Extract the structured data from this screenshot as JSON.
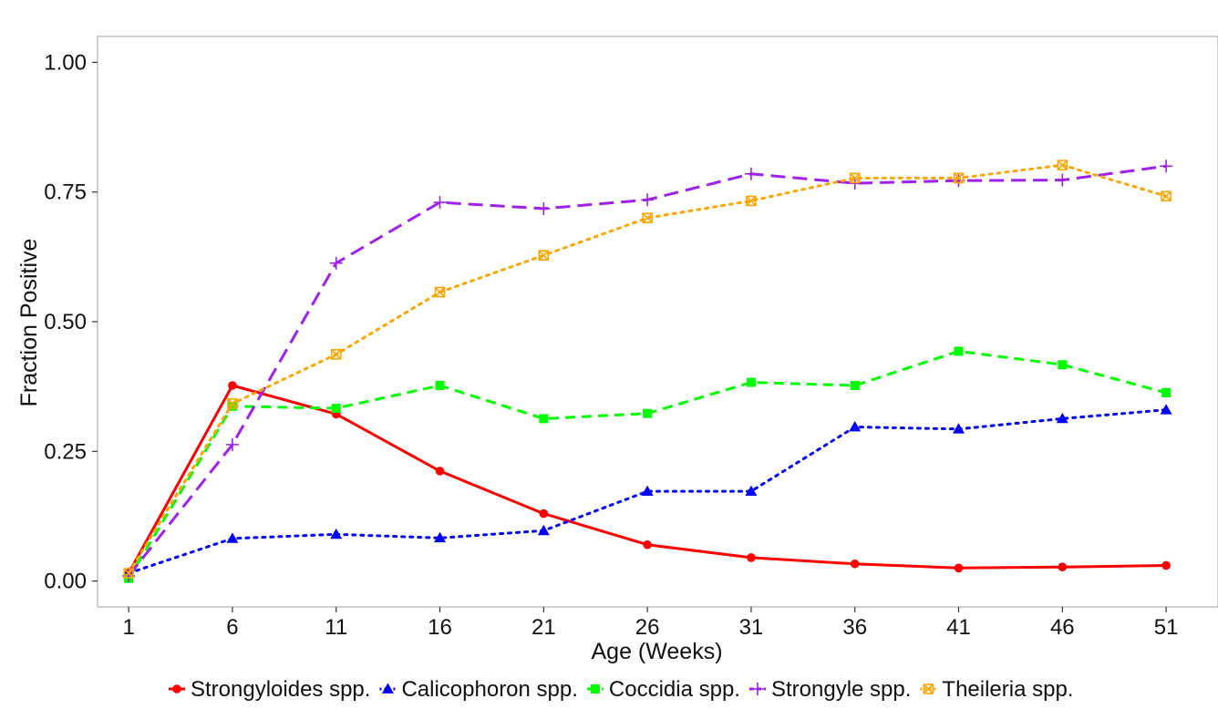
{
  "chart_data": {
    "type": "line",
    "title": "",
    "xlabel": "Age (Weeks)",
    "ylabel": "Fraction Positive",
    "x": [
      1,
      6,
      11,
      16,
      21,
      26,
      31,
      36,
      41,
      46,
      51
    ],
    "x_tick_labels": [
      "1",
      "6",
      "11",
      "16",
      "21",
      "26",
      "31",
      "36",
      "41",
      "46",
      "51"
    ],
    "y_ticks": [
      0,
      0.25,
      0.5,
      0.75,
      1
    ],
    "y_tick_labels": [
      "0.00",
      "0.25",
      "0.50",
      "0.75",
      "1.00"
    ],
    "xlim": [
      -0.5,
      53.5
    ],
    "ylim": [
      -0.05,
      1.05
    ],
    "grid": false,
    "legend_position": "bottom",
    "series": [
      {
        "name": "Strongyloides spp.",
        "color": "#ff0000",
        "line_style": "solid",
        "marker": "circle",
        "values": [
          0.015,
          0.377,
          0.322,
          0.212,
          0.13,
          0.07,
          0.045,
          0.033,
          0.025,
          0.027,
          0.03
        ]
      },
      {
        "name": "Calicophoron spp.",
        "color": "#0000ff",
        "line_style": "dotted",
        "marker": "triangle",
        "values": [
          0.015,
          0.082,
          0.09,
          0.083,
          0.097,
          0.173,
          0.173,
          0.297,
          0.293,
          0.313,
          0.33
        ]
      },
      {
        "name": "Coccidia spp.",
        "color": "#00ff00",
        "line_style": "dashed",
        "marker": "square",
        "values": [
          0.005,
          0.337,
          0.333,
          0.377,
          0.313,
          0.323,
          0.383,
          0.377,
          0.443,
          0.417,
          0.363
        ]
      },
      {
        "name": "Strongyle spp.",
        "color": "#a020f0",
        "line_style": "longdash",
        "marker": "plus",
        "values": [
          0.01,
          0.263,
          0.613,
          0.73,
          0.718,
          0.735,
          0.785,
          0.767,
          0.772,
          0.773,
          0.8
        ]
      },
      {
        "name": "Theileria spp.",
        "color": "#ffa500",
        "line_style": "dotted",
        "marker": "square-cross",
        "values": [
          0.015,
          0.342,
          0.437,
          0.557,
          0.628,
          0.7,
          0.733,
          0.777,
          0.777,
          0.802,
          0.742
        ]
      }
    ]
  }
}
